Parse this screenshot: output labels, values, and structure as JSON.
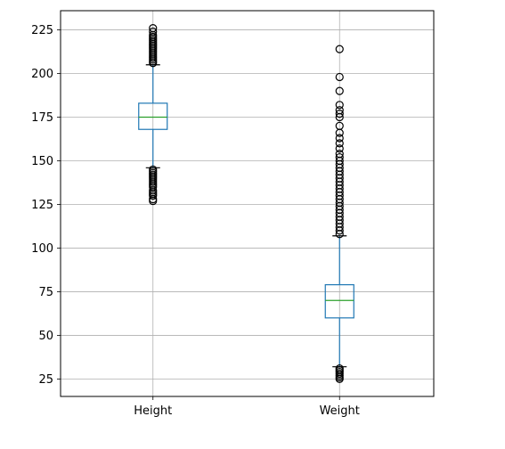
{
  "chart_data": {
    "type": "boxplot",
    "title": "",
    "xlabel": "",
    "ylabel": "",
    "ylim": [
      15,
      236
    ],
    "grid": true,
    "yticks": [
      25,
      50,
      75,
      100,
      125,
      150,
      175,
      200,
      225
    ],
    "ytick_labels": [
      "25",
      "50",
      "75",
      "100",
      "125",
      "150",
      "175",
      "200",
      "225"
    ],
    "categories": [
      "Height",
      "Weight"
    ],
    "boxes": [
      {
        "label": "Height",
        "whisker_low": 146,
        "q1": 168,
        "median": 175,
        "q3": 183,
        "whisker_high": 205,
        "outliers": [
          127,
          128,
          130,
          131,
          132,
          133,
          135,
          136,
          137,
          138,
          139,
          140,
          141,
          142,
          143,
          144,
          145,
          206,
          207,
          208,
          209,
          210,
          211,
          212,
          213,
          214,
          215,
          216,
          217,
          218,
          219,
          220,
          221,
          222,
          224,
          226
        ]
      },
      {
        "label": "Weight",
        "whisker_low": 32,
        "q1": 60,
        "median": 70,
        "q3": 79,
        "whisker_high": 107,
        "outliers": [
          25,
          26,
          27,
          28,
          29,
          30,
          31,
          108,
          110,
          112,
          114,
          116,
          118,
          120,
          122,
          124,
          126,
          128,
          130,
          132,
          134,
          136,
          138,
          140,
          142,
          144,
          146,
          148,
          150,
          152,
          154,
          157,
          160,
          163,
          166,
          170,
          175,
          177,
          179,
          182,
          190,
          198,
          214
        ]
      }
    ],
    "colors": {
      "box": "#1f77b4",
      "median": "#2ca02c",
      "outlier": "#000000",
      "grid": "#b0b0b0",
      "axis": "#000000"
    }
  }
}
